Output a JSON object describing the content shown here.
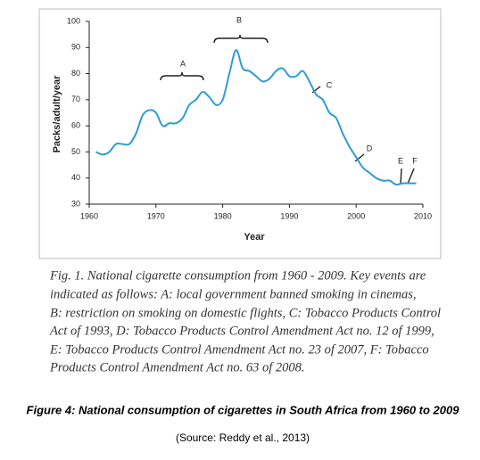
{
  "chart_data": {
    "type": "line",
    "x": [
      1961,
      1962,
      1963,
      1964,
      1965,
      1966,
      1967,
      1968,
      1969,
      1970,
      1971,
      1972,
      1973,
      1974,
      1975,
      1976,
      1977,
      1978,
      1979,
      1980,
      1981,
      1982,
      1983,
      1984,
      1985,
      1986,
      1987,
      1988,
      1989,
      1990,
      1991,
      1992,
      1993,
      1994,
      1995,
      1996,
      1997,
      1998,
      1999,
      2000,
      2001,
      2002,
      2003,
      2004,
      2005,
      2006,
      2007,
      2008,
      2009
    ],
    "values": [
      50,
      49,
      50,
      53,
      53,
      53,
      57,
      64,
      66,
      65,
      60,
      61,
      61,
      63,
      68,
      70,
      73,
      71,
      68,
      70,
      80,
      89,
      82,
      81,
      79,
      77,
      78,
      81,
      82,
      79,
      79,
      81,
      77,
      72,
      70,
      65,
      63,
      57,
      52,
      48,
      44,
      42,
      40,
      39,
      39,
      37.5,
      38,
      38,
      38
    ],
    "color": "#2e9cd6",
    "xlim": [
      1960,
      2010
    ],
    "xticks": [
      1960,
      1970,
      1980,
      1990,
      2000,
      2010
    ],
    "ylim": [
      30,
      100
    ],
    "yticks": [
      30,
      40,
      50,
      60,
      70,
      80,
      90,
      100
    ],
    "xlabel": "Year",
    "ylabel": "Packs/adult/year",
    "annotations": [
      "A",
      "B",
      "C",
      "D",
      "E",
      "F"
    ]
  },
  "caption": [
    "Fig. 1. National cigarette consumption from 1960 - 2009. Key events are",
    "indicated as follows: A: local government banned smoking in cinemas,",
    "B: restriction on smoking on domestic flights, C: Tobacco Products Control",
    "Act of 1993, D: Tobacco Products Control Amendment Act no. 12 of 1999,",
    "E: Tobacco Products Control Amendment Act no. 23 of 2007, F: Tobacco",
    "Products Control Amendment Act no. 63 of 2008."
  ],
  "figure_title": "Figure 4: National consumption of cigarettes in South Africa from 1960 to 2009",
  "source": "(Source: Reddy et al., 2013)"
}
